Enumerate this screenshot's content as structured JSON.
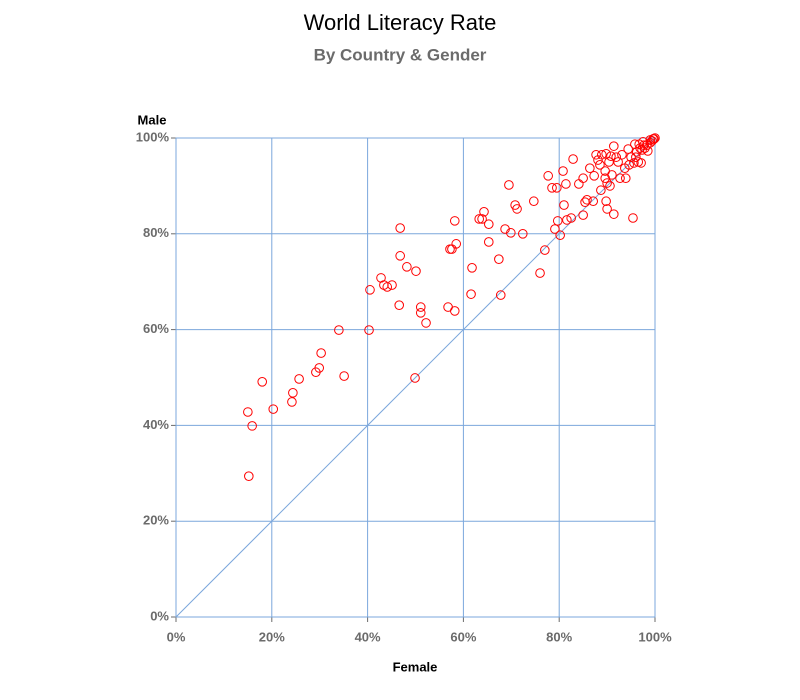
{
  "chart_data": {
    "type": "scatter",
    "title": "World Literacy Rate",
    "subtitle": "By Country & Gender",
    "x_label": "Female",
    "y_label": "Male",
    "color": "#ff0000",
    "grid": true,
    "xlim": [
      0,
      100
    ],
    "ylim": [
      0,
      100
    ],
    "xticks": [
      {
        "value": 0,
        "label": "0%"
      },
      {
        "value": 20,
        "label": "20%"
      },
      {
        "value": 40,
        "label": "40%"
      },
      {
        "value": 60,
        "label": "60%"
      },
      {
        "value": 80,
        "label": "80%"
      },
      {
        "value": 100,
        "label": "100%"
      }
    ],
    "yticks": [
      {
        "value": 0,
        "label": "0%"
      },
      {
        "value": 20,
        "label": "20%"
      },
      {
        "value": 40,
        "label": "40%"
      },
      {
        "value": 60,
        "label": "60%"
      },
      {
        "value": 80,
        "label": "80%"
      },
      {
        "value": 100,
        "label": "100%"
      }
    ],
    "x": [
      15.2,
      15.0,
      15.9,
      18.0,
      20.3,
      24.2,
      24.4,
      25.7,
      29.2,
      29.9,
      30.3,
      34.0,
      35.1,
      40.3,
      40.5,
      42.8,
      43.4,
      44.1,
      45.1,
      46.6,
      46.8,
      46.8,
      48.2,
      50.1,
      49.9,
      51.1,
      51.1,
      52.2,
      56.8,
      57.2,
      57.6,
      58.2,
      58.2,
      58.5,
      61.6,
      61.8,
      63.3,
      63.9,
      64.3,
      65.3,
      65.3,
      67.4,
      67.8,
      68.7,
      69.5,
      69.9,
      70.8,
      71.2,
      72.4,
      74.7,
      76.0,
      77.0,
      77.7,
      78.5,
      79.1,
      79.5,
      79.7,
      80.2,
      80.8,
      81.0,
      81.4,
      81.6,
      82.5,
      82.9,
      84.1,
      85.0,
      85.0,
      85.4,
      85.8,
      86.4,
      87.1,
      87.3,
      87.7,
      88.1,
      88.5,
      88.7,
      88.9,
      89.6,
      89.6,
      89.8,
      89.8,
      90.0,
      90.0,
      90.4,
      90.6,
      90.8,
      91.0,
      91.4,
      91.4,
      91.9,
      92.3,
      92.7,
      93.1,
      93.7,
      93.9,
      94.4,
      94.6,
      95.0,
      95.4,
      95.6,
      95.8,
      96.2,
      96.7,
      97.1,
      97.3,
      97.5,
      97.9,
      98.3,
      98.5,
      99.0,
      99.4,
      99.8,
      100,
      99.6,
      99.0,
      96.9,
      97.7,
      96.0,
      96.5
    ],
    "values": [
      29.4,
      42.8,
      39.9,
      49.1,
      43.4,
      44.9,
      46.8,
      49.7,
      51.1,
      52.0,
      55.1,
      59.9,
      50.3,
      59.9,
      68.3,
      70.8,
      69.3,
      68.9,
      69.3,
      65.1,
      75.4,
      81.2,
      73.1,
      72.2,
      49.9,
      64.7,
      63.5,
      61.4,
      64.7,
      76.8,
      76.8,
      63.9,
      82.7,
      77.9,
      67.4,
      72.9,
      83.1,
      83.1,
      84.6,
      82.0,
      78.3,
      74.7,
      67.2,
      81.0,
      90.2,
      80.2,
      86.0,
      85.2,
      80.0,
      86.8,
      71.8,
      76.6,
      92.1,
      89.6,
      81.0,
      89.6,
      82.7,
      79.7,
      93.1,
      86.0,
      90.4,
      82.9,
      83.3,
      95.6,
      90.4,
      91.6,
      83.9,
      86.6,
      87.1,
      93.7,
      86.8,
      92.1,
      96.5,
      95.4,
      94.4,
      89.1,
      96.5,
      93.1,
      91.6,
      96.7,
      86.8,
      90.6,
      85.2,
      95.0,
      90.0,
      96.2,
      92.3,
      98.3,
      84.1,
      96.0,
      95.0,
      91.6,
      96.5,
      93.7,
      91.6,
      97.7,
      94.4,
      96.0,
      83.3,
      94.8,
      98.7,
      97.1,
      98.7,
      94.8,
      97.5,
      99.2,
      97.9,
      98.5,
      97.3,
      99.6,
      99.4,
      99.8,
      100,
      99.8,
      99.0,
      97.9,
      98.5,
      96.0,
      95.0
    ]
  }
}
